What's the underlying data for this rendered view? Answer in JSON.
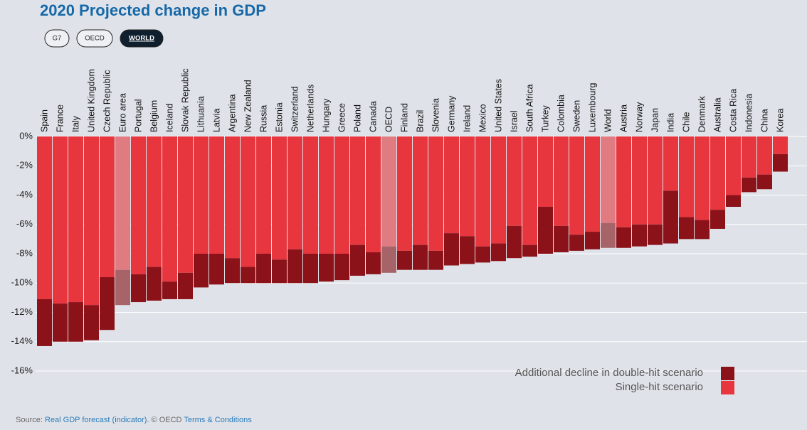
{
  "chart_data": {
    "type": "bar",
    "title": "2020 Projected change in GDP",
    "buttons": [
      "G7",
      "OECD",
      "WORLD"
    ],
    "active_button": 2,
    "source": {
      "prefix": "Source: ",
      "link": "Real GDP forecast (indicator)",
      "middle": ". © OECD ",
      "terms": "Terms & Conditions"
    },
    "stacked": true,
    "grid": true,
    "legend": "bottom-right",
    "categories": [
      "Spain",
      "France",
      "Italy",
      "United Kingdom",
      "Czech Republic",
      "Euro area",
      "Portugal",
      "Belgium",
      "Iceland",
      "Slovak Republic",
      "Lithuania",
      "Latvia",
      "Argentina",
      "New Zealand",
      "Russia",
      "Estonia",
      "Switzerland",
      "Netherlands",
      "Hungary",
      "Greece",
      "Poland",
      "Canada",
      "OECD",
      "Finland",
      "Brazil",
      "Slovenia",
      "Germany",
      "Ireland",
      "Mexico",
      "United States",
      "Israel",
      "South Africa",
      "Turkey",
      "Colombia",
      "Sweden",
      "Luxembourg",
      "World",
      "Austria",
      "Norway",
      "Japan",
      "India",
      "Chile",
      "Denmark",
      "Australia",
      "Costa Rica",
      "Indonesia",
      "China",
      "Korea"
    ],
    "highlight": [
      "Euro area",
      "OECD",
      "World"
    ],
    "series": [
      {
        "name": "Single-hit scenario",
        "color": "#e8363f",
        "highlight_color": "#e07b82",
        "values": [
          -11.1,
          -11.4,
          -11.3,
          -11.5,
          -9.6,
          -9.1,
          -9.4,
          -8.9,
          -9.9,
          -9.3,
          -8.0,
          -8.0,
          -8.3,
          -8.9,
          -8.0,
          -8.4,
          -7.7,
          -8.0,
          -8.0,
          -8.0,
          -7.4,
          -7.9,
          -7.5,
          -7.8,
          -7.4,
          -7.8,
          -6.6,
          -6.8,
          -7.5,
          -7.3,
          -6.1,
          -7.4,
          -4.8,
          -6.1,
          -6.7,
          -6.5,
          -5.9,
          -6.2,
          -6.0,
          -6.0,
          -3.7,
          -5.5,
          -5.7,
          -5.0,
          -4.0,
          -2.8,
          -2.6,
          -1.2
        ]
      },
      {
        "name": "Additional decline in double-hit scenario",
        "color": "#8b1219",
        "highlight_color": "#a66469",
        "values": [
          -3.2,
          -2.6,
          -2.7,
          -2.4,
          -3.6,
          -2.4,
          -1.9,
          -2.3,
          -1.2,
          -1.8,
          -2.3,
          -2.1,
          -1.7,
          -1.1,
          -2.0,
          -1.6,
          -2.3,
          -2.0,
          -1.9,
          -1.8,
          -2.1,
          -1.5,
          -1.8,
          -1.3,
          -1.7,
          -1.3,
          -2.2,
          -1.9,
          -1.1,
          -1.2,
          -2.2,
          -0.8,
          -3.2,
          -1.8,
          -1.1,
          -1.2,
          -1.7,
          -1.4,
          -1.5,
          -1.4,
          -3.6,
          -1.5,
          -1.3,
          -1.3,
          -0.8,
          -1.0,
          -1.0,
          -1.2
        ]
      }
    ],
    "ylim": [
      -16,
      0
    ],
    "yticks": [
      {
        "value": 0,
        "label": "0%"
      },
      {
        "value": -2,
        "label": "-2%"
      },
      {
        "value": -4,
        "label": "-4%"
      },
      {
        "value": -6,
        "label": "-6%"
      },
      {
        "value": -8,
        "label": "-8%"
      },
      {
        "value": -10,
        "label": "-10%"
      },
      {
        "value": -12,
        "label": "-12%"
      },
      {
        "value": -14,
        "label": "-14%"
      },
      {
        "value": -16,
        "label": "-16%"
      }
    ]
  }
}
